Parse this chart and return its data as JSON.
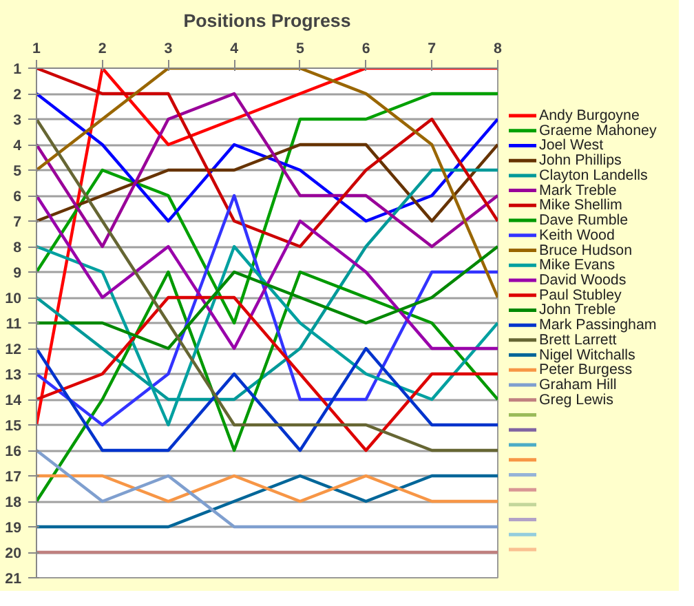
{
  "chart_data": {
    "type": "line",
    "title": "Positions Progress",
    "x": [
      1,
      2,
      3,
      4,
      5,
      6,
      7,
      8
    ],
    "xlim": [
      1,
      8
    ],
    "xticks": [
      1,
      2,
      3,
      4,
      5,
      6,
      7,
      8
    ],
    "ylim": [
      21,
      1
    ],
    "yticks": [
      1,
      2,
      3,
      4,
      5,
      6,
      7,
      8,
      9,
      10,
      11,
      12,
      13,
      14,
      15,
      16,
      17,
      18,
      19,
      20,
      21
    ],
    "grid": "y",
    "legend": "right",
    "line_style": "solid",
    "series": [
      {
        "name": "Andy Burgoyne",
        "color": "#ff0000",
        "values": [
          15,
          1,
          4,
          3,
          2,
          1,
          1,
          1
        ]
      },
      {
        "name": "Graeme Mahoney",
        "color": "#00a000",
        "values": [
          9,
          5,
          6,
          11,
          3,
          3,
          2,
          2
        ]
      },
      {
        "name": "Joel West",
        "color": "#0000ff",
        "values": [
          2,
          4,
          7,
          4,
          5,
          7,
          6,
          3
        ]
      },
      {
        "name": "John Phillips",
        "color": "#663300",
        "values": [
          7,
          6,
          5,
          5,
          4,
          4,
          7,
          4
        ]
      },
      {
        "name": "Clayton Landells",
        "color": "#009999",
        "values": [
          10,
          12,
          14,
          14,
          12,
          8,
          5,
          5
        ]
      },
      {
        "name": "Mark Treble",
        "color": "#990099",
        "values": [
          4,
          8,
          3,
          2,
          6,
          6,
          8,
          6
        ]
      },
      {
        "name": "Mike Shellim",
        "color": "#cc0000",
        "values": [
          1,
          2,
          2,
          7,
          8,
          5,
          3,
          7
        ]
      },
      {
        "name": "Dave Rumble",
        "color": "#009900",
        "values": [
          18,
          14,
          9,
          16,
          9,
          10,
          11,
          14
        ]
      },
      {
        "name": "Keith Wood",
        "color": "#3333ff",
        "values": [
          13,
          15,
          13,
          6,
          14,
          14,
          9,
          9
        ]
      },
      {
        "name": "Bruce Hudson",
        "color": "#996600",
        "values": [
          5,
          3,
          1,
          1,
          1,
          2,
          4,
          10
        ]
      },
      {
        "name": "Mike Evans",
        "color": "#00a0a0",
        "values": [
          8,
          9,
          15,
          8,
          11,
          13,
          14,
          11
        ]
      },
      {
        "name": "David Woods",
        "color": "#9900aa",
        "values": [
          6,
          10,
          8,
          12,
          7,
          9,
          12,
          12
        ]
      },
      {
        "name": "Paul Stubley",
        "color": "#dd0000",
        "values": [
          14,
          13,
          10,
          10,
          13,
          16,
          13,
          13
        ]
      },
      {
        "name": "John Treble",
        "color": "#008800",
        "values": [
          11,
          11,
          12,
          9,
          10,
          11,
          10,
          8
        ]
      },
      {
        "name": "Mark Passingham",
        "color": "#0033cc",
        "values": [
          12,
          16,
          16,
          13,
          16,
          12,
          15,
          15
        ]
      },
      {
        "name": "Brett Larrett",
        "color": "#666633",
        "values": [
          3,
          7,
          11,
          15,
          15,
          15,
          16,
          16
        ]
      },
      {
        "name": "Nigel Witchalls",
        "color": "#006699",
        "values": [
          19,
          19,
          19,
          18,
          17,
          18,
          17,
          17
        ]
      },
      {
        "name": "Peter Burgess",
        "color": "#f79646",
        "values": [
          17,
          17,
          18,
          17,
          18,
          17,
          18,
          18
        ]
      },
      {
        "name": "Graham Hill",
        "color": "#7f9fcf",
        "values": [
          16,
          18,
          17,
          19,
          19,
          19,
          19,
          19
        ]
      },
      {
        "name": "Greg Lewis",
        "color": "#c0807f",
        "values": [
          20,
          20,
          20,
          20,
          20,
          20,
          20,
          20
        ]
      },
      {
        "color": "#9bbb59",
        "values": [
          null,
          null,
          null,
          null,
          null,
          null,
          null,
          null
        ]
      },
      {
        "color": "#8064a2",
        "values": [
          null,
          null,
          null,
          null,
          null,
          null,
          null,
          null
        ]
      },
      {
        "color": "#4bacc6",
        "values": [
          null,
          null,
          null,
          null,
          null,
          null,
          null,
          null
        ]
      },
      {
        "color": "#f79646",
        "values": [
          null,
          null,
          null,
          null,
          null,
          null,
          null,
          null
        ]
      },
      {
        "color": "#95b3d7",
        "values": [
          null,
          null,
          null,
          null,
          null,
          null,
          null,
          null
        ]
      },
      {
        "color": "#d99694",
        "values": [
          null,
          null,
          null,
          null,
          null,
          null,
          null,
          null
        ]
      },
      {
        "color": "#c3d69b",
        "values": [
          null,
          null,
          null,
          null,
          null,
          null,
          null,
          null
        ]
      },
      {
        "color": "#b2a2c7",
        "values": [
          null,
          null,
          null,
          null,
          null,
          null,
          null,
          null
        ]
      },
      {
        "color": "#93cddd",
        "values": [
          null,
          null,
          null,
          null,
          null,
          null,
          null,
          null
        ]
      },
      {
        "color": "#fac090",
        "values": [
          null,
          null,
          null,
          null,
          null,
          null,
          null,
          null
        ]
      }
    ]
  }
}
